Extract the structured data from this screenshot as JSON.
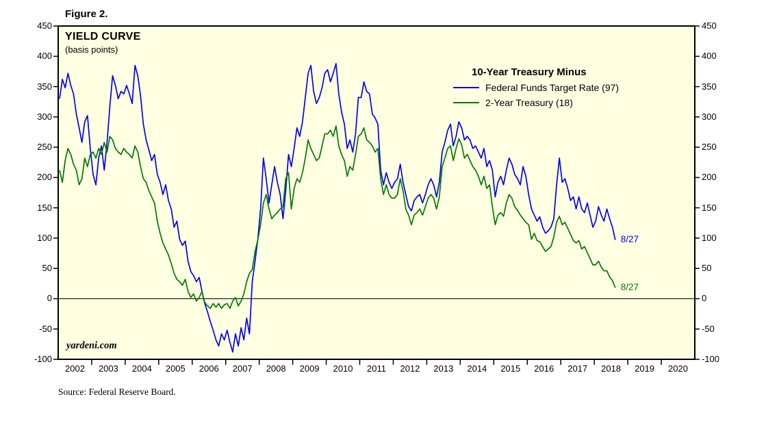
{
  "figure_label": "Figure 2.",
  "source_note": "Source: Federal Reserve Board.",
  "watermark": "yardeni.com",
  "colors": {
    "plot_bg": "#FFFFE2",
    "border": "#000000",
    "blue": "#0000F0",
    "green": "#007800"
  },
  "chart_data": {
    "type": "line",
    "title": "YIELD CURVE",
    "subtitle": "(basis points)",
    "legend_title": "10-Year Treasury Minus",
    "legend_position": "upper right inside plot",
    "grid": "zero line only",
    "ylim": [
      -100,
      450
    ],
    "ytick_step": 50,
    "x_start": 2002,
    "x_end": 2021,
    "frequency": "monthly",
    "x_tick_labels": [
      "2002",
      "2003",
      "2004",
      "2005",
      "2006",
      "2007",
      "2008",
      "2009",
      "2010",
      "2011",
      "2012",
      "2013",
      "2014",
      "2015",
      "2016",
      "2017",
      "2018",
      "2019",
      "2020"
    ],
    "zero_line": true,
    "series": [
      {
        "name": "Federal Funds Target Rate (97)",
        "color": "#0000F0",
        "end_label": "8/27",
        "end_value": 97,
        "x0": 2002,
        "values": [
          330,
          362,
          348,
          372,
          352,
          338,
          305,
          282,
          258,
          292,
          302,
          248,
          205,
          188,
          232,
          252,
          212,
          258,
          318,
          368,
          352,
          330,
          342,
          338,
          352,
          338,
          322,
          385,
          368,
          335,
          288,
          262,
          245,
          228,
          238,
          205,
          192,
          172,
          188,
          162,
          148,
          118,
          128,
          98,
          88,
          95,
          62,
          45,
          38,
          28,
          35,
          12,
          -8,
          -22,
          -38,
          -52,
          -68,
          -78,
          -58,
          -68,
          -52,
          -72,
          -88,
          -58,
          -78,
          -48,
          -68,
          -32,
          -58,
          28,
          62,
          98,
          148,
          232,
          198,
          158,
          188,
          218,
          192,
          172,
          132,
          178,
          238,
          218,
          248,
          282,
          268,
          292,
          332,
          372,
          385,
          342,
          322,
          332,
          348,
          372,
          378,
          358,
          372,
          388,
          338,
          308,
          288,
          248,
          262,
          242,
          272,
          332,
          332,
          358,
          342,
          338,
          305,
          298,
          288,
          212,
          188,
          208,
          192,
          182,
          192,
          198,
          222,
          192,
          172,
          152,
          145,
          162,
          168,
          172,
          158,
          172,
          188,
          198,
          188,
          168,
          192,
          242,
          258,
          278,
          288,
          252,
          268,
          292,
          282,
          262,
          268,
          262,
          248,
          252,
          242,
          232,
          248,
          218,
          228,
          212,
          168,
          192,
          202,
          188,
          212,
          232,
          222,
          205,
          198,
          188,
          218,
          202,
          172,
          148,
          138,
          128,
          135,
          118,
          108,
          112,
          118,
          132,
          188,
          232,
          192,
          198,
          182,
          162,
          168,
          148,
          168,
          148,
          142,
          158,
          138,
          118,
          128,
          152,
          138,
          128,
          148,
          132,
          118,
          97
        ]
      },
      {
        "name": "2-Year Treasury (18)",
        "color": "#007800",
        "end_label": "8/27",
        "end_value": 18,
        "x0": 2002,
        "values": [
          212,
          192,
          228,
          248,
          238,
          222,
          212,
          188,
          198,
          232,
          218,
          238,
          242,
          232,
          248,
          238,
          258,
          242,
          268,
          262,
          248,
          242,
          238,
          248,
          242,
          238,
          232,
          252,
          242,
          218,
          198,
          192,
          178,
          168,
          158,
          128,
          108,
          92,
          82,
          72,
          58,
          42,
          32,
          28,
          22,
          32,
          12,
          2,
          8,
          -4,
          2,
          12,
          -6,
          -12,
          -16,
          -8,
          -14,
          -8,
          -16,
          -10,
          -8,
          -16,
          -4,
          2,
          -12,
          -4,
          8,
          28,
          42,
          48,
          78,
          97,
          122,
          158,
          172,
          148,
          132,
          138,
          142,
          148,
          152,
          198,
          208,
          148,
          182,
          198,
          192,
          208,
          232,
          262,
          248,
          238,
          228,
          232,
          252,
          272,
          272,
          278,
          268,
          285,
          252,
          238,
          228,
          202,
          218,
          212,
          238,
          268,
          272,
          282,
          262,
          258,
          252,
          242,
          248,
          198,
          172,
          188,
          172,
          166,
          166,
          172,
          198,
          178,
          148,
          138,
          122,
          138,
          142,
          148,
          138,
          152,
          166,
          172,
          166,
          148,
          168,
          218,
          232,
          248,
          252,
          228,
          248,
          264,
          254,
          232,
          238,
          228,
          218,
          212,
          202,
          188,
          202,
          182,
          188,
          152,
          122,
          138,
          142,
          136,
          158,
          172,
          166,
          152,
          146,
          138,
          132,
          126,
          122,
          98,
          108,
          96,
          94,
          86,
          78,
          82,
          86,
          102,
          126,
          136,
          122,
          126,
          116,
          106,
          96,
          92,
          96,
          82,
          86,
          76,
          66,
          56,
          56,
          62,
          52,
          46,
          46,
          36,
          30,
          18
        ]
      }
    ]
  }
}
